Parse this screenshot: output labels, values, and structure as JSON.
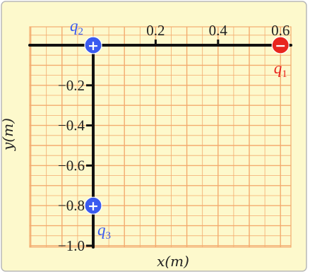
{
  "diagram": {
    "x_axis": {
      "title": "x(m)",
      "range": [
        0,
        0.6
      ],
      "ticks": [
        0.2,
        0.4,
        0.6
      ],
      "tick_labels": [
        "0.2",
        "0.4",
        "0.6"
      ]
    },
    "y_axis": {
      "title": "y(m)",
      "range": [
        -1.0,
        0
      ],
      "ticks": [
        -0.2,
        -0.4,
        -0.6,
        -0.8,
        -1.0
      ],
      "tick_labels": [
        "−0.2",
        "−0.4",
        "−0.6",
        "−0.8",
        "−1.0"
      ]
    },
    "grid": {
      "shown": true,
      "minor_step": 0.05,
      "major_step": 0.1
    },
    "charges": [
      {
        "id": "q1",
        "label": "q",
        "subscript": "1",
        "sign": "−",
        "x": 0.6,
        "y": 0,
        "color": "#e8261e"
      },
      {
        "id": "q2",
        "label": "q",
        "subscript": "2",
        "sign": "+",
        "x": 0,
        "y": 0,
        "color": "#3a5bf0"
      },
      {
        "id": "q3",
        "label": "q",
        "subscript": "3",
        "sign": "+",
        "x": 0,
        "y": -0.8,
        "color": "#3a5bf0"
      }
    ],
    "colors": {
      "background": "#fdf9cc",
      "grid": "#f3ab6e",
      "axis": "#111111",
      "border": "#b8b8b8"
    }
  }
}
